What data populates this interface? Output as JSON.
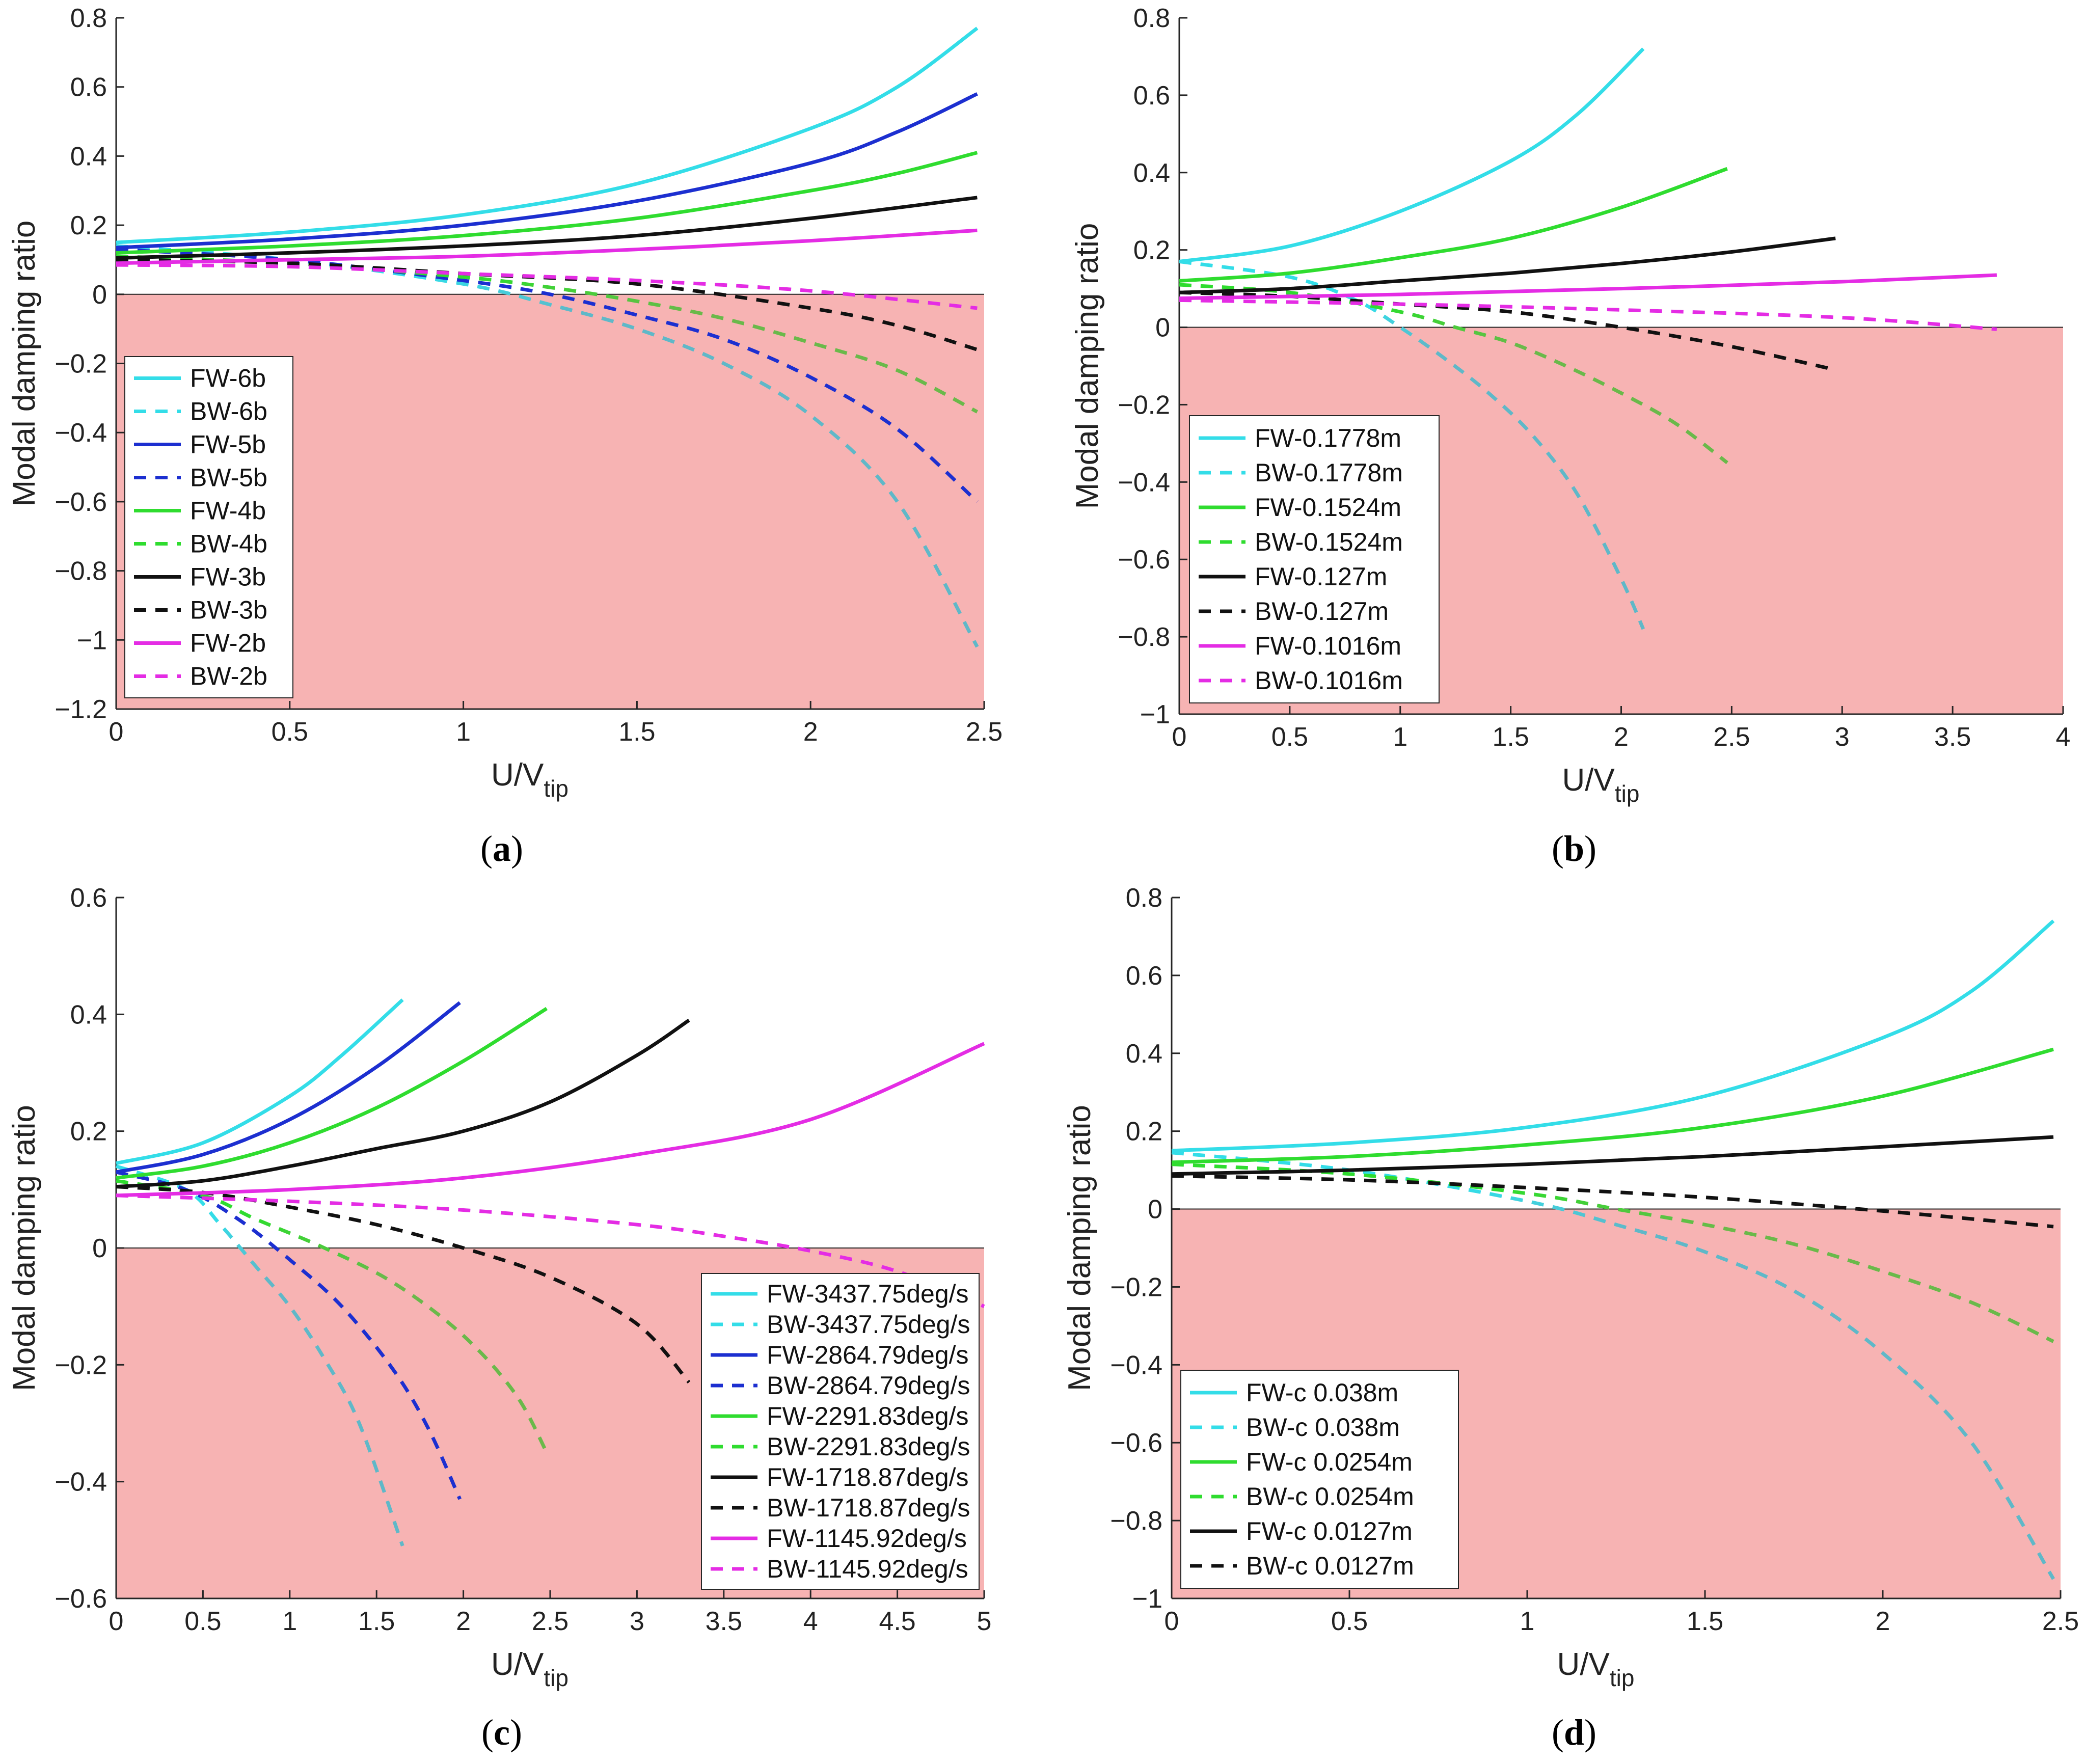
{
  "colors": {
    "cyan": "#33dde8",
    "cyan_dashed": "#5fb8c8",
    "blue": "#1c2fd0",
    "green": "#2fdc2f",
    "green_dashed": "#6ab94a",
    "black": "#111111",
    "magenta": "#e42ce4",
    "unstable_region": "#f7b3b3"
  },
  "chart_data": [
    {
      "id": "a",
      "type": "line",
      "caption": "(a)",
      "caption_letter": "a",
      "xlabel": "U/V",
      "xlabel_sub": "tip",
      "ylabel": "Modal damping ratio",
      "xlim": [
        0,
        2.5
      ],
      "ylim": [
        -1.2,
        0.8
      ],
      "xticks": [
        0,
        0.5,
        1,
        1.5,
        2,
        2.5
      ],
      "yticks": [
        -1.2,
        -1,
        -0.8,
        -0.6,
        -0.4,
        -0.2,
        0,
        0.2,
        0.4,
        0.6,
        0.8
      ],
      "legend_position": "bottom-left",
      "shaded_region": "y < 0",
      "series": [
        {
          "name": "FW-6b",
          "color": "#33dde8",
          "dash": false,
          "x": [
            0,
            0.5,
            1,
            1.5,
            2,
            2.25,
            2.48
          ],
          "y": [
            0.15,
            0.18,
            0.23,
            0.32,
            0.48,
            0.6,
            0.77
          ]
        },
        {
          "name": "BW-6b",
          "color": "#33dde8",
          "tail_color": "#5fb8c8",
          "dash": true,
          "x": [
            0,
            0.5,
            1,
            1.25,
            1.5,
            1.75,
            2,
            2.25,
            2.48
          ],
          "y": [
            0.14,
            0.1,
            0.03,
            -0.03,
            -0.1,
            -0.2,
            -0.35,
            -0.6,
            -1.02
          ]
        },
        {
          "name": "FW-5b",
          "color": "#1c2fd0",
          "dash": false,
          "x": [
            0,
            0.5,
            1,
            1.5,
            2,
            2.25,
            2.48
          ],
          "y": [
            0.135,
            0.16,
            0.2,
            0.27,
            0.38,
            0.47,
            0.58
          ]
        },
        {
          "name": "BW-5b",
          "color": "#1c2fd0",
          "dash": true,
          "x": [
            0,
            0.5,
            1,
            1.25,
            1.5,
            1.75,
            2,
            2.25,
            2.48
          ],
          "y": [
            0.13,
            0.1,
            0.04,
            0,
            -0.06,
            -0.13,
            -0.24,
            -0.39,
            -0.6
          ]
        },
        {
          "name": "FW-4b",
          "color": "#2fdc2f",
          "dash": false,
          "x": [
            0,
            0.5,
            1,
            1.5,
            2,
            2.25,
            2.48
          ],
          "y": [
            0.12,
            0.14,
            0.17,
            0.22,
            0.3,
            0.35,
            0.41
          ]
        },
        {
          "name": "BW-4b",
          "color": "#2fdc2f",
          "tail_color": "#6ab94a",
          "dash": true,
          "x": [
            0,
            0.5,
            1,
            1.25,
            1.5,
            1.75,
            2,
            2.25,
            2.48
          ],
          "y": [
            0.11,
            0.09,
            0.05,
            0.02,
            -0.02,
            -0.07,
            -0.14,
            -0.22,
            -0.34
          ]
        },
        {
          "name": "FW-3b",
          "color": "#111111",
          "dash": false,
          "x": [
            0,
            0.5,
            1,
            1.5,
            2,
            2.48
          ],
          "y": [
            0.105,
            0.12,
            0.14,
            0.17,
            0.22,
            0.28
          ]
        },
        {
          "name": "BW-3b",
          "color": "#111111",
          "dash": true,
          "x": [
            0,
            0.5,
            1,
            1.5,
            2,
            2.25,
            2.48
          ],
          "y": [
            0.1,
            0.09,
            0.06,
            0.03,
            -0.04,
            -0.09,
            -0.16
          ]
        },
        {
          "name": "FW-2b",
          "color": "#e42ce4",
          "dash": false,
          "x": [
            0,
            0.5,
            1,
            1.5,
            2,
            2.48
          ],
          "y": [
            0.09,
            0.1,
            0.11,
            0.13,
            0.155,
            0.185
          ]
        },
        {
          "name": "BW-2b",
          "color": "#e42ce4",
          "dash": true,
          "x": [
            0,
            0.5,
            1,
            1.5,
            2,
            2.48
          ],
          "y": [
            0.085,
            0.08,
            0.06,
            0.04,
            0.01,
            -0.04
          ]
        }
      ]
    },
    {
      "id": "b",
      "type": "line",
      "caption": "(b)",
      "caption_letter": "b",
      "xlabel": "U/V",
      "xlabel_sub": "tip",
      "ylabel": "Modal damping ratio",
      "xlim": [
        0,
        4
      ],
      "ylim": [
        -1,
        0.8
      ],
      "xticks": [
        0,
        0.5,
        1,
        1.5,
        2,
        2.5,
        3,
        3.5,
        4
      ],
      "yticks": [
        -1,
        -0.8,
        -0.6,
        -0.4,
        -0.2,
        0,
        0.2,
        0.4,
        0.6,
        0.8
      ],
      "legend_position": "bottom-left",
      "shaded_region": "y < 0",
      "series": [
        {
          "name": "FW-0.1778m",
          "color": "#33dde8",
          "dash": false,
          "x": [
            0,
            0.5,
            1,
            1.5,
            1.8,
            2.1
          ],
          "y": [
            0.17,
            0.21,
            0.3,
            0.43,
            0.55,
            0.72
          ]
        },
        {
          "name": "BW-0.1778m",
          "color": "#33dde8",
          "tail_color": "#5fb8c8",
          "dash": true,
          "x": [
            0,
            0.5,
            0.8,
            1,
            1.2,
            1.4,
            1.6,
            1.8,
            2,
            2.1
          ],
          "y": [
            0.17,
            0.13,
            0.07,
            0.0,
            -0.08,
            -0.17,
            -0.28,
            -0.43,
            -0.65,
            -0.78
          ]
        },
        {
          "name": "FW-0.1524m",
          "color": "#2fdc2f",
          "dash": false,
          "x": [
            0,
            0.5,
            1,
            1.5,
            2,
            2.48
          ],
          "y": [
            0.12,
            0.14,
            0.18,
            0.23,
            0.31,
            0.41
          ]
        },
        {
          "name": "BW-0.1524m",
          "color": "#2fdc2f",
          "tail_color": "#6ab94a",
          "dash": true,
          "x": [
            0,
            0.5,
            1,
            1.25,
            1.5,
            1.75,
            2,
            2.25,
            2.48
          ],
          "y": [
            0.11,
            0.09,
            0.04,
            0.0,
            -0.04,
            -0.1,
            -0.17,
            -0.25,
            -0.35
          ]
        },
        {
          "name": "FW-0.127m",
          "color": "#111111",
          "dash": false,
          "x": [
            0,
            0.5,
            1,
            1.5,
            2,
            2.5,
            2.97
          ],
          "y": [
            0.09,
            0.1,
            0.12,
            0.14,
            0.165,
            0.195,
            0.23
          ]
        },
        {
          "name": "BW-0.127m",
          "color": "#111111",
          "dash": true,
          "x": [
            0,
            0.5,
            1,
            1.5,
            2,
            2.5,
            2.97
          ],
          "y": [
            0.09,
            0.08,
            0.06,
            0.04,
            0.0,
            -0.05,
            -0.11
          ]
        },
        {
          "name": "FW-0.1016m",
          "color": "#e42ce4",
          "dash": false,
          "x": [
            0,
            1,
            2,
            3,
            3.7
          ],
          "y": [
            0.075,
            0.085,
            0.1,
            0.118,
            0.135
          ]
        },
        {
          "name": "BW-0.1016m",
          "color": "#e42ce4",
          "dash": true,
          "x": [
            0,
            1,
            2,
            3,
            3.7
          ],
          "y": [
            0.07,
            0.06,
            0.045,
            0.025,
            -0.005
          ]
        }
      ]
    },
    {
      "id": "c",
      "type": "line",
      "caption": "(c)",
      "caption_letter": "c",
      "xlabel": "U/V",
      "xlabel_sub": "tip",
      "ylabel": "Modal damping ratio",
      "xlim": [
        0,
        5
      ],
      "ylim": [
        -0.6,
        0.6
      ],
      "xticks": [
        0,
        0.5,
        1,
        1.5,
        2,
        2.5,
        3,
        3.5,
        4,
        4.5,
        5
      ],
      "yticks": [
        -0.6,
        -0.4,
        -0.2,
        0,
        0.2,
        0.4,
        0.6
      ],
      "legend_position": "bottom-right",
      "shaded_region": "y < 0",
      "series": [
        {
          "name": "FW-3437.75deg/s",
          "color": "#33dde8",
          "dash": false,
          "x": [
            0,
            0.5,
            1,
            1.3,
            1.65
          ],
          "y": [
            0.145,
            0.18,
            0.26,
            0.33,
            0.425
          ]
        },
        {
          "name": "BW-3437.75deg/s",
          "color": "#33dde8",
          "tail_color": "#5fb8c8",
          "dash": true,
          "x": [
            0,
            0.4,
            0.6,
            0.8,
            1,
            1.2,
            1.4,
            1.65
          ],
          "y": [
            0.14,
            0.1,
            0.04,
            -0.03,
            -0.1,
            -0.19,
            -0.3,
            -0.51
          ]
        },
        {
          "name": "FW-2864.79deg/s",
          "color": "#1c2fd0",
          "dash": false,
          "x": [
            0,
            0.5,
            1,
            1.5,
            1.98
          ],
          "y": [
            0.13,
            0.16,
            0.22,
            0.31,
            0.42
          ]
        },
        {
          "name": "BW-2864.79deg/s",
          "color": "#1c2fd0",
          "dash": true,
          "x": [
            0,
            0.4,
            0.7,
            1,
            1.3,
            1.6,
            1.8,
            1.98
          ],
          "y": [
            0.13,
            0.1,
            0.05,
            -0.02,
            -0.1,
            -0.21,
            -0.31,
            -0.43
          ]
        },
        {
          "name": "FW-2291.83deg/s",
          "color": "#2fdc2f",
          "dash": false,
          "x": [
            0,
            0.5,
            1,
            1.5,
            2,
            2.48
          ],
          "y": [
            0.12,
            0.14,
            0.18,
            0.24,
            0.32,
            0.41
          ]
        },
        {
          "name": "BW-2291.83deg/s",
          "color": "#2fdc2f",
          "tail_color": "#6ab94a",
          "dash": true,
          "x": [
            0,
            0.5,
            0.8,
            1.2,
            1.6,
            2,
            2.3,
            2.48
          ],
          "y": [
            0.115,
            0.09,
            0.05,
            0.0,
            -0.06,
            -0.15,
            -0.25,
            -0.35
          ]
        },
        {
          "name": "FW-1718.87deg/s",
          "color": "#111111",
          "dash": false,
          "x": [
            0,
            0.5,
            1,
            1.5,
            2,
            2.5,
            3,
            3.3
          ],
          "y": [
            0.105,
            0.115,
            0.14,
            0.17,
            0.2,
            0.25,
            0.33,
            0.39
          ]
        },
        {
          "name": "BW-1718.87deg/s",
          "color": "#111111",
          "dash": true,
          "x": [
            0,
            0.5,
            1,
            1.5,
            2,
            2.5,
            3,
            3.3
          ],
          "y": [
            0.105,
            0.095,
            0.07,
            0.04,
            0.0,
            -0.05,
            -0.13,
            -0.23
          ]
        },
        {
          "name": "FW-1145.92deg/s",
          "color": "#e42ce4",
          "dash": false,
          "x": [
            0,
            1,
            2,
            3,
            4,
            5
          ],
          "y": [
            0.09,
            0.1,
            0.12,
            0.16,
            0.22,
            0.35
          ]
        },
        {
          "name": "BW-1145.92deg/s",
          "color": "#e42ce4",
          "dash": true,
          "x": [
            0,
            1,
            2,
            3,
            3.5,
            4,
            4.5,
            5
          ],
          "y": [
            0.09,
            0.08,
            0.065,
            0.04,
            0.02,
            -0.005,
            -0.04,
            -0.1
          ]
        }
      ]
    },
    {
      "id": "d",
      "type": "line",
      "caption": "(d)",
      "caption_letter": "d",
      "xlabel": "U/V",
      "xlabel_sub": "tip",
      "ylabel": "Modal damping ratio",
      "xlim": [
        0,
        2.5
      ],
      "ylim": [
        -1,
        0.8
      ],
      "xticks": [
        0,
        0.5,
        1,
        1.5,
        2,
        2.5
      ],
      "yticks": [
        -1,
        -0.8,
        -0.6,
        -0.4,
        -0.2,
        0,
        0.2,
        0.4,
        0.6,
        0.8
      ],
      "legend_position": "bottom-left",
      "shaded_region": "y < 0",
      "series": [
        {
          "name": "FW-c 0.038m",
          "color": "#33dde8",
          "dash": false,
          "x": [
            0,
            0.5,
            1,
            1.5,
            2,
            2.25,
            2.48
          ],
          "y": [
            0.15,
            0.17,
            0.21,
            0.29,
            0.44,
            0.56,
            0.74
          ]
        },
        {
          "name": "BW-c 0.038m",
          "color": "#33dde8",
          "tail_color": "#5fb8c8",
          "dash": true,
          "x": [
            0,
            0.5,
            1,
            1.25,
            1.5,
            1.75,
            2,
            2.25,
            2.48
          ],
          "y": [
            0.145,
            0.1,
            0.02,
            -0.04,
            -0.11,
            -0.21,
            -0.37,
            -0.6,
            -0.95
          ]
        },
        {
          "name": "FW-c 0.0254m",
          "color": "#2fdc2f",
          "dash": false,
          "x": [
            0,
            0.5,
            1,
            1.5,
            2,
            2.48
          ],
          "y": [
            0.12,
            0.135,
            0.165,
            0.21,
            0.29,
            0.41
          ]
        },
        {
          "name": "BW-c 0.0254m",
          "color": "#2fdc2f",
          "tail_color": "#6ab94a",
          "dash": true,
          "x": [
            0,
            0.5,
            1,
            1.25,
            1.5,
            1.75,
            2,
            2.25,
            2.48
          ],
          "y": [
            0.115,
            0.09,
            0.04,
            0.0,
            -0.04,
            -0.09,
            -0.16,
            -0.24,
            -0.34
          ]
        },
        {
          "name": "FW-c 0.0127m",
          "color": "#111111",
          "dash": false,
          "x": [
            0,
            0.5,
            1,
            1.5,
            2,
            2.48
          ],
          "y": [
            0.09,
            0.1,
            0.115,
            0.135,
            0.16,
            0.185
          ]
        },
        {
          "name": "BW-c 0.0127m",
          "color": "#111111",
          "dash": true,
          "x": [
            0,
            0.5,
            1,
            1.5,
            2,
            2.48
          ],
          "y": [
            0.085,
            0.075,
            0.055,
            0.03,
            -0.005,
            -0.045
          ]
        }
      ]
    }
  ]
}
